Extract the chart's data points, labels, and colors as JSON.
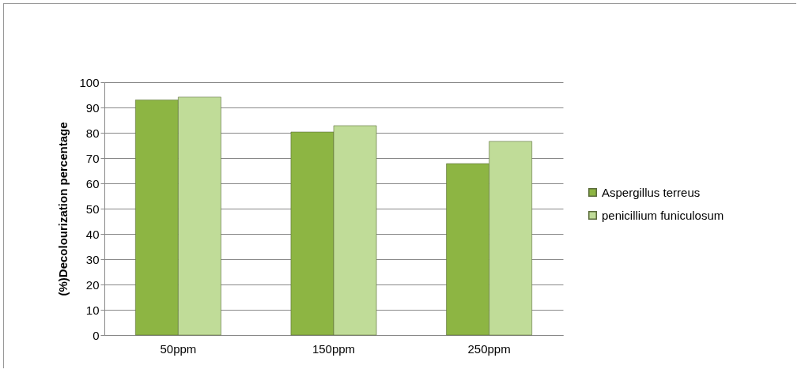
{
  "chart_data": {
    "type": "bar",
    "ylabel": "(%)Decolourization percentage",
    "categories": [
      "50ppm",
      "150ppm",
      "250ppm"
    ],
    "series": [
      {
        "name": "Aspergillus terreus",
        "color": "#8db543",
        "values": [
          93.0,
          80.3,
          67.8
        ]
      },
      {
        "name": "penicillium funiculosum",
        "color": "#c0dc98",
        "values": [
          94.1,
          82.8,
          76.6
        ]
      }
    ],
    "ylim": [
      0,
      100
    ],
    "yticks": [
      0,
      10,
      20,
      30,
      40,
      50,
      60,
      70,
      80,
      90,
      100
    ],
    "grid": "y",
    "legend": "right"
  }
}
